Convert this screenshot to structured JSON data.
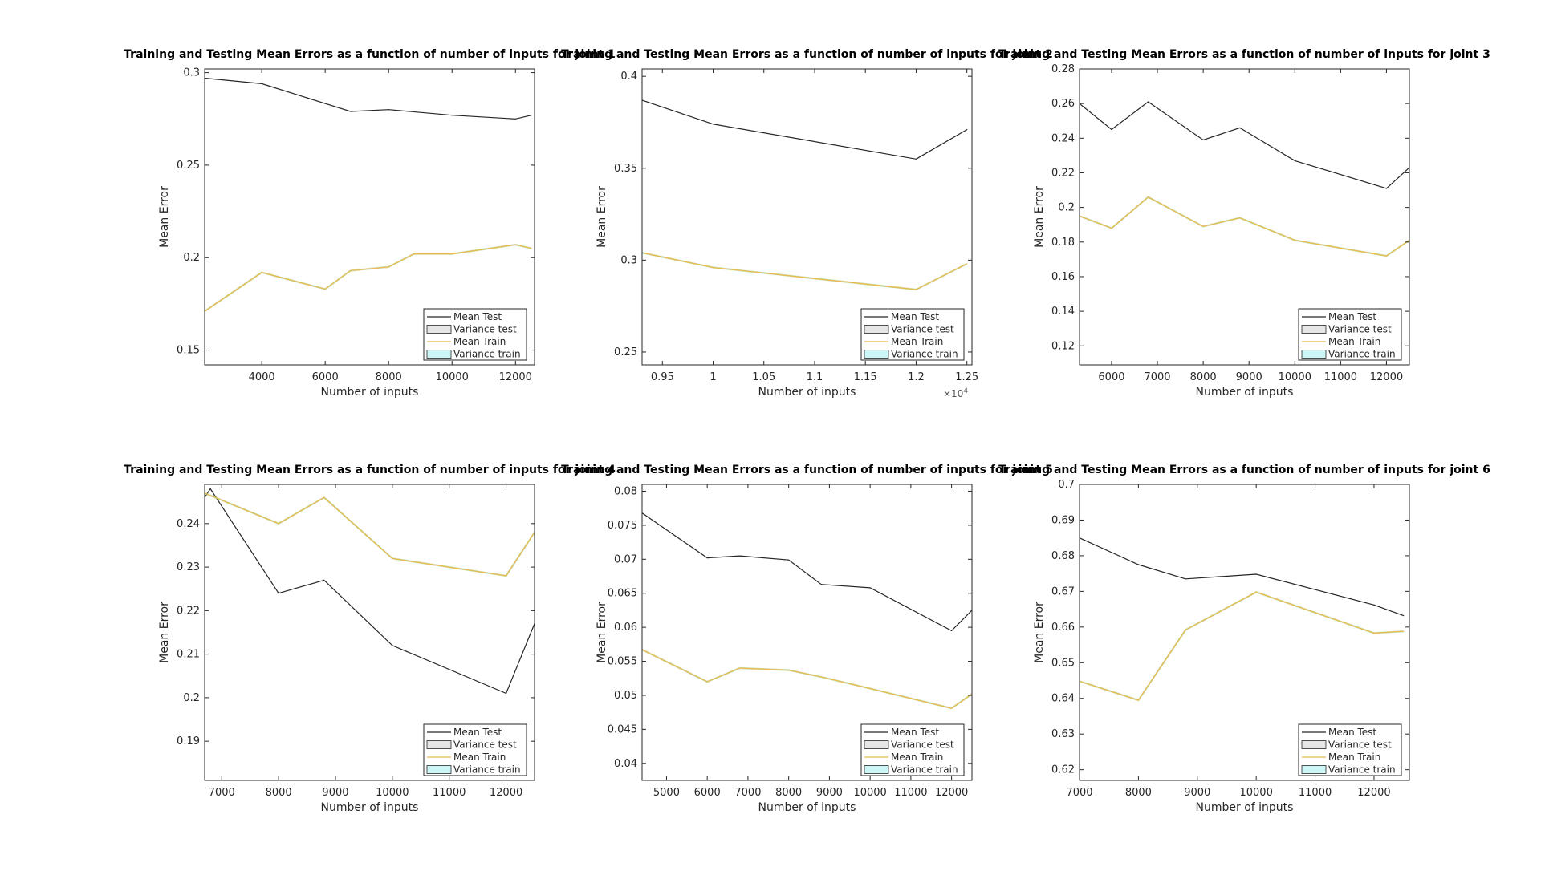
{
  "colors": {
    "mean_test": "#262626",
    "mean_train": "#e8b84a",
    "variance_test_fill": "#e6e6e6",
    "variance_train_fill": "#ccf5f5",
    "variance_train_line": "#a8d08d",
    "axes": "#262626",
    "background": "#ffffff"
  },
  "legend": {
    "entries": [
      "Mean Test",
      "Variance test",
      "Mean Train",
      "Variance train"
    ]
  },
  "chart_data": [
    {
      "type": "line",
      "title": "Training and Testing Mean Errors as a function of number of inputs for joint 1",
      "xlabel": "Number of inputs",
      "ylabel": "Mean Error",
      "xlim": [
        2200,
        12600
      ],
      "ylim": [
        0.142,
        0.302
      ],
      "xticks": [
        4000,
        6000,
        8000,
        10000,
        12000
      ],
      "xticklabels": [
        "4000",
        "6000",
        "8000",
        "10000",
        "12000"
      ],
      "yticks": [
        0.15,
        0.2,
        0.25,
        0.3
      ],
      "yticklabels": [
        "0.15",
        "0.2",
        "0.25",
        "0.3"
      ],
      "legend_position": "bottom-right",
      "series": [
        {
          "name": "Mean Test",
          "x": [
            2200,
            4000,
            6800,
            8000,
            10000,
            12000,
            12500
          ],
          "y": [
            0.297,
            0.294,
            0.279,
            0.28,
            0.277,
            0.275,
            0.277
          ]
        },
        {
          "name": "Mean Train",
          "x": [
            2200,
            4000,
            6000,
            6800,
            8000,
            8800,
            10000,
            12000,
            12500
          ],
          "y": [
            0.171,
            0.192,
            0.183,
            0.193,
            0.195,
            0.202,
            0.202,
            0.207,
            0.205
          ]
        }
      ]
    },
    {
      "type": "line",
      "title": "Training and Testing Mean Errors as a function of number of inputs for joint 2",
      "xlabel": "Number of inputs",
      "ylabel": "Mean Error",
      "x_multiplier": "×10^4",
      "xlim": [
        0.93,
        1.255
      ],
      "ylim": [
        0.243,
        0.404
      ],
      "xticks": [
        0.95,
        1.0,
        1.05,
        1.1,
        1.15,
        1.2,
        1.25
      ],
      "xticklabels": [
        "0.95",
        "1",
        "1.05",
        "1.1",
        "1.15",
        "1.2",
        "1.25"
      ],
      "yticks": [
        0.25,
        0.3,
        0.35,
        0.4
      ],
      "yticklabels": [
        "0.25",
        "0.3",
        "0.35",
        "0.4"
      ],
      "legend_position": "bottom-right",
      "series": [
        {
          "name": "Mean Test",
          "x": [
            0.93,
            1.0,
            1.2,
            1.25
          ],
          "y": [
            0.387,
            0.374,
            0.355,
            0.371
          ]
        },
        {
          "name": "Mean Train",
          "x": [
            0.93,
            1.0,
            1.2,
            1.25
          ],
          "y": [
            0.304,
            0.296,
            0.284,
            0.298
          ]
        }
      ]
    },
    {
      "type": "line",
      "title": "Training and Testing Mean Errors as a function of number of inputs for joint 3",
      "xlabel": "Number of inputs",
      "ylabel": "Mean Error",
      "xlim": [
        5300,
        12500
      ],
      "ylim": [
        0.109,
        0.28
      ],
      "xticks": [
        6000,
        7000,
        8000,
        9000,
        10000,
        11000,
        12000
      ],
      "xticklabels": [
        "6000",
        "7000",
        "8000",
        "9000",
        "10000",
        "11000",
        "12000"
      ],
      "yticks": [
        0.12,
        0.14,
        0.16,
        0.18,
        0.2,
        0.22,
        0.24,
        0.26,
        0.28
      ],
      "yticklabels": [
        "0.12",
        "0.14",
        "0.16",
        "0.18",
        "0.2",
        "0.22",
        "0.24",
        "0.26",
        "0.28"
      ],
      "legend_position": "bottom-right",
      "series": [
        {
          "name": "Mean Test",
          "x": [
            5300,
            6000,
            6800,
            8000,
            8800,
            10000,
            12000,
            12500
          ],
          "y": [
            0.26,
            0.245,
            0.261,
            0.239,
            0.246,
            0.227,
            0.211,
            0.223
          ]
        },
        {
          "name": "Mean Train",
          "x": [
            5300,
            6000,
            6800,
            8000,
            8800,
            10000,
            12000,
            12500
          ],
          "y": [
            0.195,
            0.188,
            0.206,
            0.189,
            0.194,
            0.181,
            0.172,
            0.181
          ]
        }
      ]
    },
    {
      "type": "line",
      "title": "Training and Testing Mean Errors as a function of number of inputs for joint 4",
      "xlabel": "Number of inputs",
      "ylabel": "Mean Error",
      "xlim": [
        6700,
        12500
      ],
      "ylim": [
        0.181,
        0.249
      ],
      "xticks": [
        7000,
        8000,
        9000,
        10000,
        11000,
        12000
      ],
      "xticklabels": [
        "7000",
        "8000",
        "9000",
        "10000",
        "11000",
        "12000"
      ],
      "yticks": [
        0.19,
        0.2,
        0.21,
        0.22,
        0.23,
        0.24
      ],
      "yticklabels": [
        "0.19",
        "0.2",
        "0.21",
        "0.22",
        "0.23",
        "0.24"
      ],
      "legend_position": "bottom-right",
      "series": [
        {
          "name": "Mean Test",
          "x": [
            6700,
            6800,
            8000,
            8800,
            10000,
            12000,
            12500
          ],
          "y": [
            0.246,
            0.248,
            0.224,
            0.227,
            0.212,
            0.201,
            0.217
          ]
        },
        {
          "name": "Mean Train",
          "x": [
            6700,
            8000,
            8800,
            10000,
            12000,
            12500
          ],
          "y": [
            0.247,
            0.24,
            0.246,
            0.232,
            0.228,
            0.238
          ]
        }
      ]
    },
    {
      "type": "line",
      "title": "Training and Testing Mean Errors as a function of number of inputs for joint 5",
      "xlabel": "Number of inputs",
      "ylabel": "Mean Error",
      "xlim": [
        4400,
        12500
      ],
      "ylim": [
        0.0375,
        0.081
      ],
      "xticks": [
        5000,
        6000,
        7000,
        8000,
        9000,
        10000,
        11000,
        12000
      ],
      "xticklabels": [
        "5000",
        "6000",
        "7000",
        "8000",
        "9000",
        "10000",
        "11000",
        "12000"
      ],
      "yticks": [
        0.04,
        0.045,
        0.05,
        0.055,
        0.06,
        0.065,
        0.07,
        0.075,
        0.08
      ],
      "yticklabels": [
        "0.04",
        "0.045",
        "0.05",
        "0.055",
        "0.06",
        "0.065",
        "0.07",
        "0.075",
        "0.08"
      ],
      "legend_position": "bottom-right",
      "series": [
        {
          "name": "Mean Test",
          "x": [
            4400,
            6000,
            6800,
            8000,
            8800,
            10000,
            12000,
            12500
          ],
          "y": [
            0.0768,
            0.0702,
            0.0705,
            0.0699,
            0.0663,
            0.0658,
            0.0595,
            0.0625
          ]
        },
        {
          "name": "Mean Train",
          "x": [
            4400,
            6000,
            6800,
            8000,
            8800,
            10000,
            12000,
            12500
          ],
          "y": [
            0.0567,
            0.052,
            0.054,
            0.0537,
            0.0527,
            0.051,
            0.0481,
            0.0502
          ]
        }
      ]
    },
    {
      "type": "line",
      "title": "Training and Testing Mean Errors as a function of number of inputs for joint 6",
      "xlabel": "Number of inputs",
      "ylabel": "Mean Error",
      "xlim": [
        7000,
        12600
      ],
      "ylim": [
        0.617,
        0.7
      ],
      "xticks": [
        7000,
        8000,
        9000,
        10000,
        11000,
        12000
      ],
      "xticklabels": [
        "7000",
        "8000",
        "9000",
        "10000",
        "11000",
        "12000"
      ],
      "yticks": [
        0.62,
        0.63,
        0.64,
        0.65,
        0.66,
        0.67,
        0.68,
        0.69,
        0.7
      ],
      "yticklabels": [
        "0.62",
        "0.63",
        "0.64",
        "0.65",
        "0.66",
        "0.67",
        "0.68",
        "0.69",
        "0.7"
      ],
      "legend_position": "bottom-right",
      "series": [
        {
          "name": "Mean Test",
          "x": [
            7000,
            8000,
            8800,
            10000,
            12000,
            12500
          ],
          "y": [
            0.685,
            0.6775,
            0.6735,
            0.6748,
            0.6662,
            0.6632
          ]
        },
        {
          "name": "Mean Train",
          "x": [
            7000,
            8000,
            8800,
            10000,
            12000,
            12500
          ],
          "y": [
            0.6448,
            0.6395,
            0.6592,
            0.6698,
            0.6583,
            0.6588
          ]
        }
      ]
    }
  ]
}
